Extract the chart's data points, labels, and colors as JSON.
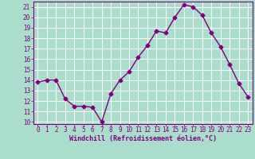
{
  "x": [
    0,
    1,
    2,
    3,
    4,
    5,
    6,
    7,
    8,
    9,
    10,
    11,
    12,
    13,
    14,
    15,
    16,
    17,
    18,
    19,
    20,
    21,
    22,
    23
  ],
  "y": [
    13.8,
    14.0,
    14.0,
    12.2,
    11.5,
    11.5,
    11.4,
    10.0,
    12.7,
    14.0,
    14.8,
    16.2,
    17.3,
    18.7,
    18.5,
    20.0,
    21.2,
    21.0,
    20.2,
    18.5,
    17.2,
    15.5,
    13.7,
    12.4
  ],
  "line_color": "#800080",
  "marker": "D",
  "marker_size": 2.5,
  "bg_color": "#aaddcc",
  "grid_color": "#ffffff",
  "xlabel": "Windchill (Refroidissement éolien,°C)",
  "xlabel_color": "#800080",
  "tick_color": "#800080",
  "ylim": [
    9.8,
    21.5
  ],
  "xlim": [
    -0.5,
    23.5
  ],
  "yticks": [
    10,
    11,
    12,
    13,
    14,
    15,
    16,
    17,
    18,
    19,
    20,
    21
  ],
  "xticks": [
    0,
    1,
    2,
    3,
    4,
    5,
    6,
    7,
    8,
    9,
    10,
    11,
    12,
    13,
    14,
    15,
    16,
    17,
    18,
    19,
    20,
    21,
    22,
    23
  ],
  "linewidth": 1.0,
  "tick_fontsize": 5.5,
  "xlabel_fontsize": 6.0
}
